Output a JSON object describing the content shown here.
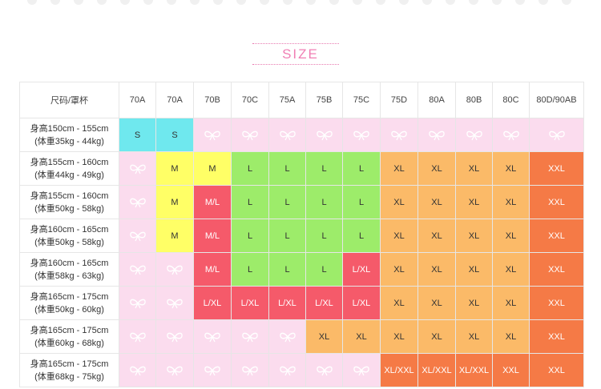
{
  "title": "SIZE",
  "corner_label": "尺码/罩杯",
  "cup_sizes": [
    "70A",
    "70A",
    "70B",
    "70C",
    "75A",
    "75B",
    "75C",
    "75D",
    "80A",
    "80B",
    "80C",
    "80D/90AB"
  ],
  "colors": {
    "S": "#6fe8ee",
    "M": "#ffff66",
    "L": "#9dec6a",
    "M/L": "#f55a6a",
    "L/XL": "#f55a6a",
    "XL": "#fbba68",
    "XXL": "#f57a46",
    "XL/XXL": "#f57a46",
    "empty": "#fbdcee"
  },
  "empty_icon": "bow-icon",
  "rows": [
    {
      "height": "身高150cm - 155cm",
      "weight": "(体重35kg - 44kg)",
      "cells": [
        "S",
        "S",
        "",
        "",
        "",
        "",
        "",
        "",
        "",
        "",
        "",
        ""
      ]
    },
    {
      "height": "身高155cm - 160cm",
      "weight": "(体重44kg - 49kg)",
      "cells": [
        "",
        "M",
        "M",
        "L",
        "L",
        "L",
        "L",
        "XL",
        "XL",
        "XL",
        "XL",
        "XXL"
      ]
    },
    {
      "height": "身高155cm - 160cm",
      "weight": "(体重50kg - 58kg)",
      "cells": [
        "",
        "M",
        "M/L",
        "L",
        "L",
        "L",
        "L",
        "XL",
        "XL",
        "XL",
        "XL",
        "XXL"
      ]
    },
    {
      "height": "身高160cm - 165cm",
      "weight": "(体重50kg - 58kg)",
      "cells": [
        "",
        "M",
        "M/L",
        "L",
        "L",
        "L",
        "L",
        "XL",
        "XL",
        "XL",
        "XL",
        "XXL"
      ]
    },
    {
      "height": "身高160cm - 165cm",
      "weight": "(体重58kg - 63kg)",
      "cells": [
        "",
        "",
        "M/L",
        "L",
        "L",
        "L",
        "L/XL",
        "XL",
        "XL",
        "XL",
        "XL",
        "XXL"
      ]
    },
    {
      "height": "身高165cm - 175cm",
      "weight": "(体重50kg - 60kg)",
      "cells": [
        "",
        "",
        "L/XL",
        "L/XL",
        "L/XL",
        "L/XL",
        "L/XL",
        "XL",
        "XL",
        "XL",
        "XL",
        "XXL"
      ]
    },
    {
      "height": "身高165cm - 175cm",
      "weight": "(体重60kg - 68kg)",
      "cells": [
        "",
        "",
        "",
        "",
        "",
        "XL",
        "XL",
        "XL",
        "XL",
        "XL",
        "XL",
        "XXL"
      ]
    },
    {
      "height": "身高165cm - 175cm",
      "weight": "(体重68kg - 75kg)",
      "cells": [
        "",
        "",
        "",
        "",
        "",
        "",
        "",
        "XL/XXL",
        "XL/XXL",
        "XL/XXL",
        "XXL",
        "XXL"
      ]
    }
  ]
}
